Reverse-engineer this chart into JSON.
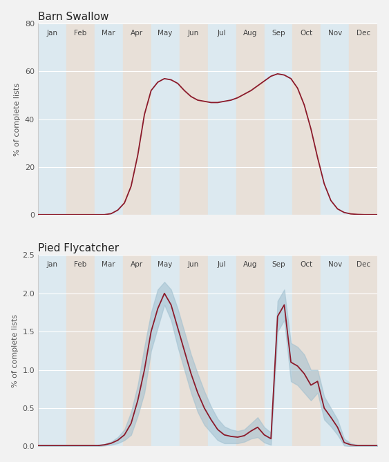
{
  "title1": "Barn Swallow",
  "title2": "Pied Flycatcher",
  "ylabel": "% of complete lists",
  "months": [
    "Jan",
    "Feb",
    "Mar",
    "Apr",
    "May",
    "Jun",
    "Jul",
    "Aug",
    "Sep",
    "Oct",
    "Nov",
    "Dec"
  ],
  "bg_odd": "#dce9f0",
  "bg_even": "#e8e0d8",
  "line_color": "#8B1A2A",
  "ci_color": "#9fbfcf",
  "barn_swallow": [
    0.1,
    0.1,
    0.1,
    0.1,
    0.1,
    0.1,
    0.1,
    0.1,
    0.1,
    0.1,
    0.1,
    0.5,
    2.0,
    5.0,
    12.0,
    25.0,
    42.0,
    52.0,
    55.5,
    57.0,
    56.5,
    55.0,
    52.0,
    49.5,
    48.0,
    47.5,
    47.0,
    47.0,
    47.5,
    48.0,
    49.0,
    50.5,
    52.0,
    54.0,
    56.0,
    58.0,
    59.0,
    58.5,
    57.0,
    53.0,
    46.0,
    36.0,
    24.0,
    13.0,
    6.0,
    2.5,
    1.0,
    0.4,
    0.2,
    0.1,
    0.1,
    0.1
  ],
  "pied_flycatcher": [
    0.01,
    0.01,
    0.01,
    0.01,
    0.01,
    0.01,
    0.01,
    0.01,
    0.01,
    0.01,
    0.02,
    0.04,
    0.08,
    0.15,
    0.3,
    0.6,
    1.0,
    1.5,
    1.8,
    2.0,
    1.85,
    1.55,
    1.25,
    0.95,
    0.7,
    0.5,
    0.35,
    0.22,
    0.15,
    0.13,
    0.12,
    0.14,
    0.2,
    0.25,
    0.15,
    0.1,
    1.7,
    1.85,
    1.1,
    1.05,
    0.95,
    0.8,
    0.85,
    0.5,
    0.38,
    0.25,
    0.05,
    0.02,
    0.01,
    0.01,
    0.01,
    0.01
  ],
  "pied_upper": [
    0.02,
    0.02,
    0.02,
    0.02,
    0.02,
    0.02,
    0.02,
    0.02,
    0.02,
    0.02,
    0.03,
    0.06,
    0.12,
    0.22,
    0.45,
    0.8,
    1.3,
    1.75,
    2.05,
    2.15,
    2.05,
    1.8,
    1.5,
    1.2,
    0.95,
    0.72,
    0.52,
    0.36,
    0.26,
    0.22,
    0.2,
    0.22,
    0.3,
    0.38,
    0.25,
    0.18,
    1.9,
    2.05,
    1.35,
    1.3,
    1.2,
    1.0,
    1.0,
    0.65,
    0.5,
    0.35,
    0.1,
    0.04,
    0.02,
    0.02,
    0.02,
    0.02
  ],
  "pied_lower": [
    0.0,
    0.0,
    0.0,
    0.0,
    0.0,
    0.0,
    0.0,
    0.0,
    0.0,
    0.0,
    0.01,
    0.02,
    0.04,
    0.08,
    0.15,
    0.4,
    0.7,
    1.25,
    1.55,
    1.85,
    1.65,
    1.3,
    1.0,
    0.7,
    0.45,
    0.28,
    0.18,
    0.08,
    0.04,
    0.04,
    0.04,
    0.06,
    0.1,
    0.12,
    0.05,
    0.02,
    1.5,
    1.65,
    0.85,
    0.8,
    0.7,
    0.6,
    0.7,
    0.35,
    0.26,
    0.15,
    0.01,
    0.0,
    0.0,
    0.0,
    0.0,
    0.0
  ],
  "ylim1": [
    0,
    80
  ],
  "ylim2": [
    0,
    2.5
  ],
  "yticks1": [
    0,
    20,
    40,
    60,
    80
  ],
  "yticks2": [
    0.0,
    0.5,
    1.0,
    1.5,
    2.0,
    2.5
  ],
  "fig_bg": "#f2f2f2",
  "n_points": 52
}
